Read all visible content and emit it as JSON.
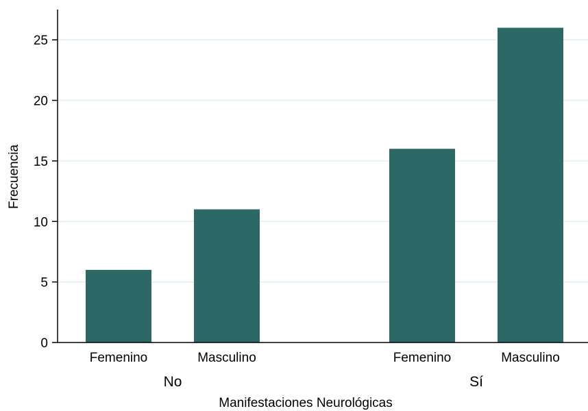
{
  "chart_data": {
    "type": "bar",
    "title": "",
    "xlabel": "Manifestaciones Neurológicas",
    "ylabel": "Frecuencia",
    "ylim": [
      0,
      27.5
    ],
    "yticks": [
      0,
      5,
      10,
      15,
      20,
      25
    ],
    "grid": true,
    "legend": "none",
    "groups": [
      {
        "label": "No",
        "categories": [
          "Femenino",
          "Masculino"
        ],
        "values": [
          6,
          11
        ]
      },
      {
        "label": "Sí",
        "categories": [
          "Femenino",
          "Masculino"
        ],
        "values": [
          16,
          26
        ]
      }
    ]
  },
  "colors": {
    "bar": "#2d6964",
    "grid": "#e3ecef",
    "axis": "#000000"
  }
}
